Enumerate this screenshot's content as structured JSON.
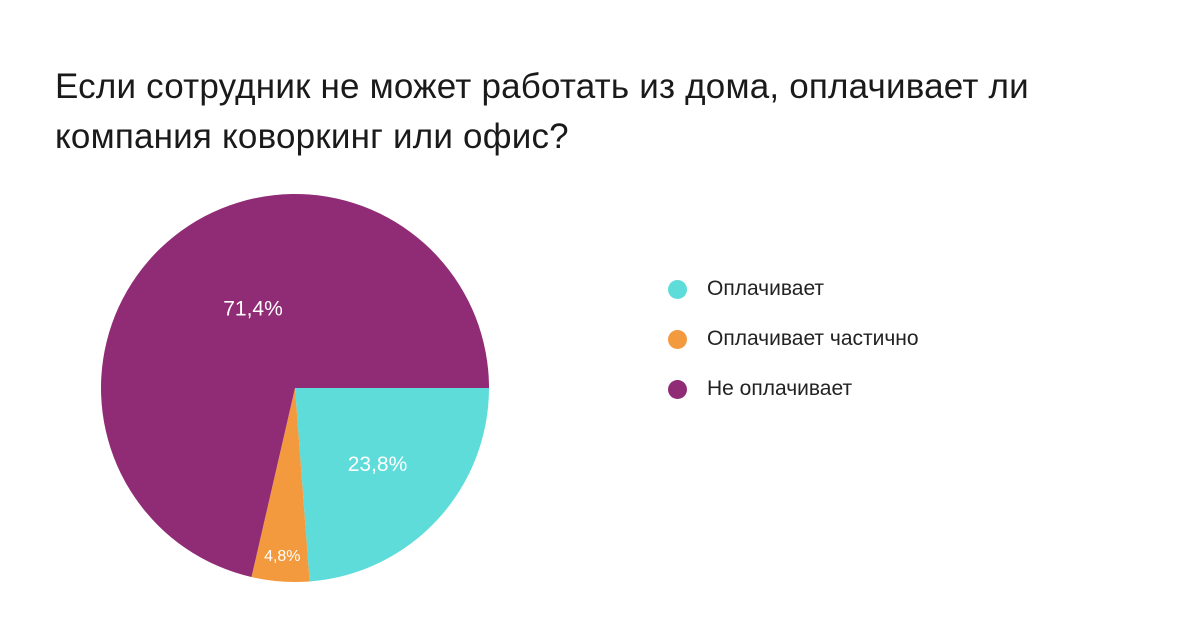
{
  "chart_data": {
    "type": "pie",
    "title": "Если сотрудник не может работать из дома, оплачивает ли компания коворкинг или офис?",
    "legend_position": "right",
    "slices": [
      {
        "name": "Оплачивает",
        "value": 23.8,
        "label": "23,8%",
        "color": "#5edcd9"
      },
      {
        "name": "Оплачивает частично",
        "value": 4.8,
        "label": "4,8%",
        "color": "#f39a3f"
      },
      {
        "name": "Не оплачивает",
        "value": 71.4,
        "label": "71,4%",
        "color": "#902b75"
      }
    ]
  }
}
